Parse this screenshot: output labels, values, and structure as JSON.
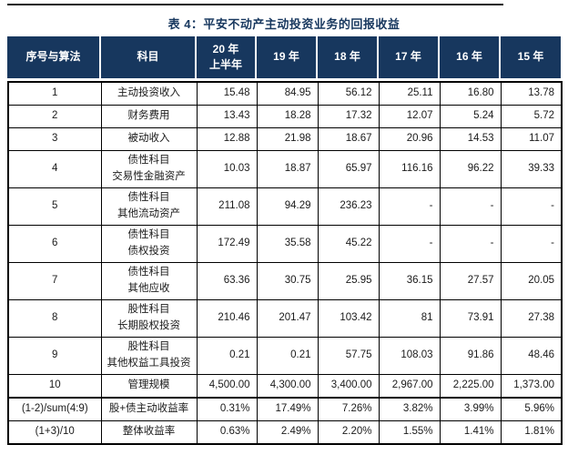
{
  "title": "表 4：平安不动产主动投资业务的回报收益",
  "colors": {
    "navy": "#17375E",
    "rule": "#1a1a1a",
    "grid": "#000000",
    "header_text": "#ffffff"
  },
  "table": {
    "columns": [
      {
        "lines": [
          "序号与算法"
        ]
      },
      {
        "lines": [
          "科目"
        ]
      },
      {
        "lines": [
          "20 年",
          "上半年"
        ]
      },
      {
        "lines": [
          "19 年"
        ]
      },
      {
        "lines": [
          "18 年"
        ]
      },
      {
        "lines": [
          "17 年"
        ]
      },
      {
        "lines": [
          "16 年"
        ]
      },
      {
        "lines": [
          "15 年"
        ]
      }
    ],
    "rows": [
      {
        "id": "1",
        "subject": [
          "主动投资收入"
        ],
        "values": [
          "15.48",
          "84.95",
          "56.12",
          "25.11",
          "16.80",
          "13.78"
        ]
      },
      {
        "id": "2",
        "subject": [
          "财务费用"
        ],
        "values": [
          "13.43",
          "18.28",
          "17.32",
          "12.07",
          "5.24",
          "5.72"
        ]
      },
      {
        "id": "3",
        "subject": [
          "被动收入"
        ],
        "values": [
          "12.88",
          "21.98",
          "18.67",
          "20.96",
          "14.53",
          "11.07"
        ]
      },
      {
        "id": "4",
        "subject": [
          "债性科目",
          "交易性金融资产"
        ],
        "values": [
          "10.03",
          "18.87",
          "65.97",
          "116.16",
          "96.22",
          "39.33"
        ]
      },
      {
        "id": "5",
        "subject": [
          "债性科目",
          "其他流动资产"
        ],
        "values": [
          "211.08",
          "94.29",
          "236.23",
          "-",
          "-",
          "-"
        ]
      },
      {
        "id": "6",
        "subject": [
          "债性科目",
          "债权投资"
        ],
        "values": [
          "172.49",
          "35.58",
          "45.22",
          "-",
          "-",
          "-"
        ]
      },
      {
        "id": "7",
        "subject": [
          "债性科目",
          "其他应收"
        ],
        "values": [
          "63.36",
          "30.75",
          "25.95",
          "36.15",
          "27.57",
          "20.05"
        ]
      },
      {
        "id": "8",
        "subject": [
          "股性科目",
          "长期股权投资"
        ],
        "values": [
          "210.46",
          "201.47",
          "103.42",
          "81",
          "73.91",
          "27.38"
        ]
      },
      {
        "id": "9",
        "subject": [
          "股性科目",
          "其他权益工具投资"
        ],
        "values": [
          "0.21",
          "0.21",
          "57.75",
          "108.03",
          "91.86",
          "48.46"
        ]
      },
      {
        "id": "10",
        "subject": [
          "管理规模"
        ],
        "values": [
          "4,500.00",
          "4,300.00",
          "3,400.00",
          "2,967.00",
          "2,225.00",
          "1,373.00"
        ]
      },
      {
        "id": "(1-2)/sum(4:9)",
        "subject": [
          "股+债主动收益率"
        ],
        "values": [
          "0.31%",
          "17.49%",
          "7.26%",
          "3.82%",
          "3.99%",
          "5.96%"
        ]
      },
      {
        "id": "(1+3)/10",
        "subject": [
          "整体收益率"
        ],
        "values": [
          "0.63%",
          "2.49%",
          "2.20%",
          "1.55%",
          "1.41%",
          "1.81%"
        ]
      }
    ]
  }
}
